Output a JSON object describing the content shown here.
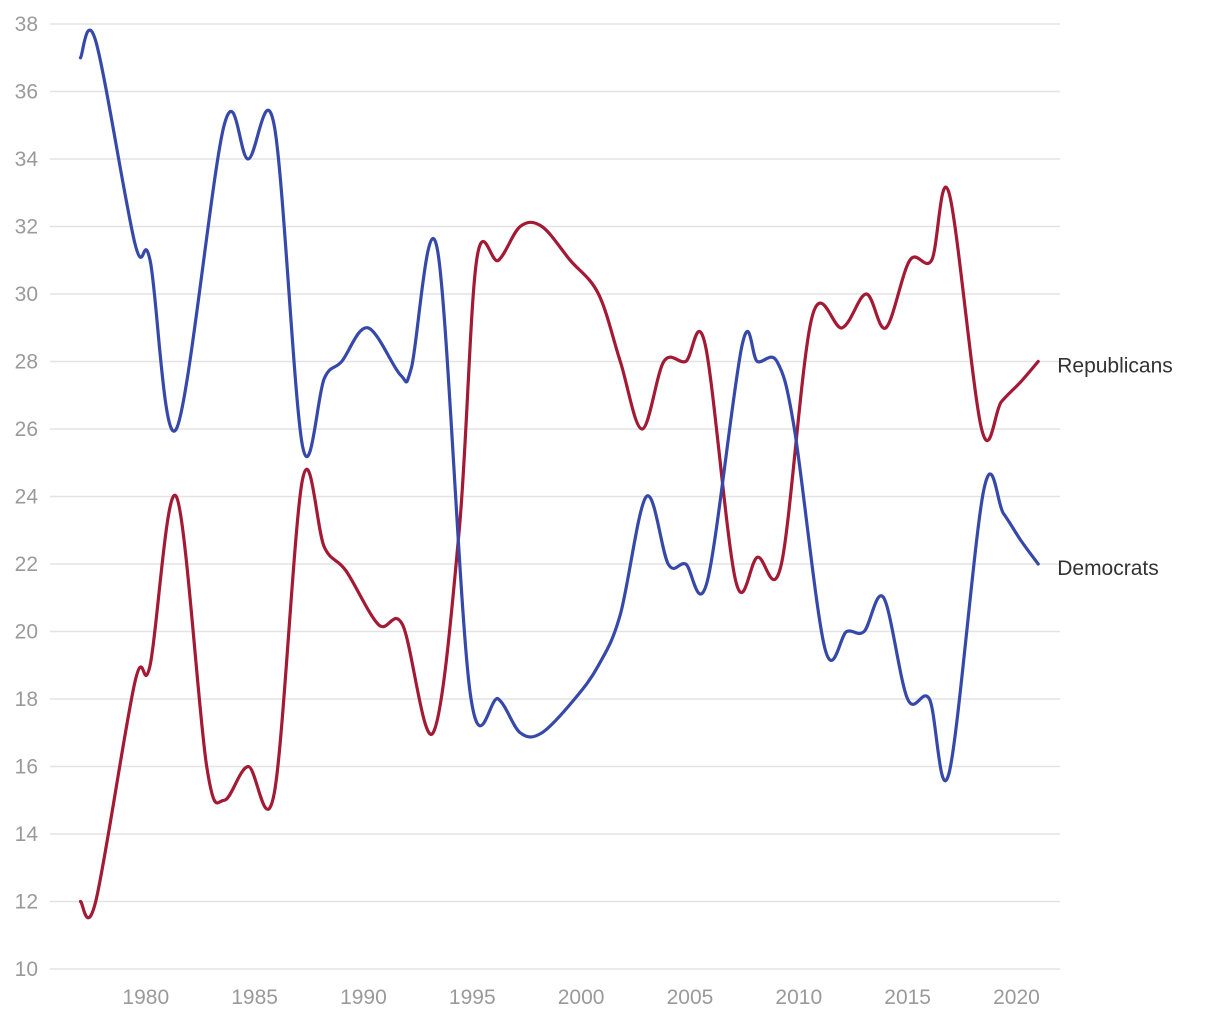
{
  "chart_data": {
    "type": "line",
    "x": [
      1977,
      1978,
      1979,
      1980,
      1981,
      1982,
      1983,
      1984,
      1985,
      1986,
      1987,
      1988,
      1989,
      1990,
      1991,
      1992,
      1993,
      1994,
      1995,
      1996,
      1997,
      1998,
      1999,
      2000,
      2001,
      2002,
      2003,
      2004,
      2005,
      2006,
      2007,
      2008,
      2009,
      2010,
      2011,
      2012,
      2013,
      2014,
      2015,
      2016,
      2017,
      2018,
      2019,
      2020,
      2021
    ],
    "series": [
      {
        "name": "Republicans",
        "color": "#a31a35",
        "values": [
          12,
          12,
          18.5,
          19,
          24,
          16,
          15,
          16,
          15.2,
          24.5,
          22.5,
          21.8,
          20.2,
          20.2,
          17,
          23,
          31,
          31,
          32,
          32,
          31,
          30,
          28,
          26,
          28,
          28,
          28.5,
          21.5,
          22.2,
          22,
          29.3,
          29,
          30,
          29,
          31,
          31,
          33,
          26,
          26.8,
          27.4,
          28
        ],
        "x": [
          1977,
          1977.7,
          1979.5,
          1980.2,
          1981.4,
          1982.8,
          1983.6,
          1984.7,
          1985.9,
          1987.2,
          1988.2,
          1989.2,
          1990.7,
          1991.8,
          1993.2,
          1994.4,
          1995.2,
          1996.2,
          1997.2,
          1998.2,
          1999.5,
          2000.8,
          2001.8,
          2002.8,
          2003.8,
          2004.8,
          2005.7,
          2007.1,
          2008.1,
          2009.2,
          2010.6,
          2012.0,
          2013.1,
          2014.0,
          2015.1,
          2016.1,
          2016.9,
          2018.4,
          2019.3,
          2020.2,
          2021
        ]
      },
      {
        "name": "Democrats",
        "color": "#3749a8",
        "values": [
          37,
          37.5,
          31.5,
          31,
          26,
          35,
          34,
          35,
          25.5,
          27.5,
          28,
          29,
          27.6,
          27.8,
          31.3,
          18.2,
          18,
          17,
          17,
          18,
          19,
          20.5,
          24,
          22,
          22,
          21.5,
          28.5,
          28,
          28,
          26,
          19.5,
          20,
          20,
          21,
          18,
          18,
          15.8,
          24.2,
          23.5,
          22.7,
          22
        ],
        "x": [
          1977,
          1977.7,
          1979.5,
          1980.2,
          1981.4,
          1983.6,
          1984.7,
          1985.9,
          1987.2,
          1988.2,
          1989.0,
          1990.2,
          1991.7,
          1992.2,
          1993.4,
          1994.9,
          1996.2,
          1997.2,
          1998.2,
          1999.7,
          2000.8,
          2001.8,
          2003.0,
          2004.0,
          2004.8,
          2005.8,
          2007.4,
          2008.1,
          2009.0,
          2009.8,
          2011.2,
          2012.2,
          2013.0,
          2013.9,
          2015.0,
          2016.0,
          2016.9,
          2018.5,
          2019.4,
          2020.2,
          2021
        ]
      }
    ],
    "xticks": [
      1980,
      1985,
      1990,
      1995,
      2000,
      2005,
      2010,
      2015,
      2020
    ],
    "xlim": [
      1975.6,
      2022
    ],
    "ylim": [
      10,
      38
    ],
    "yticks": [
      10,
      12,
      14,
      16,
      18,
      20,
      22,
      24,
      26,
      28,
      30,
      32,
      34,
      36,
      38
    ],
    "grid": "horizontal",
    "legend": "direct labels at line ends (right)",
    "title": "",
    "xlabel": "",
    "ylabel": ""
  }
}
